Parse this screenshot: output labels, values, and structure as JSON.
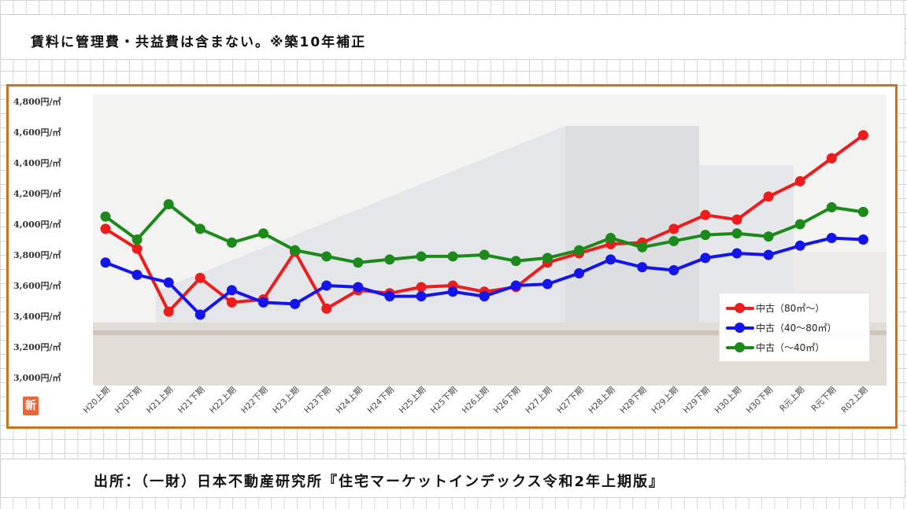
{
  "note": "賃料に管理費・共益費は含まない。※築10年補正",
  "source": "出所：（一財）日本不動産研究所『住宅マーケットインデックス令和2年上期版』",
  "badge": "新",
  "chart_data": {
    "type": "line",
    "categories": [
      "H20上期",
      "H20下期",
      "H21上期",
      "H21下期",
      "H22上期",
      "H22下期",
      "H23上期",
      "H23下期",
      "H24上期",
      "H24下期",
      "H25上期",
      "H25下期",
      "H26上期",
      "H26下期",
      "H27上期",
      "H27下期",
      "H28上期",
      "H28下期",
      "H29上期",
      "H29下期",
      "H30上期",
      "H30下期",
      "R元上期",
      "R元下期",
      "R02上期"
    ],
    "y_ticks": [
      "3,000円/㎡",
      "3,200円/㎡",
      "3,400円/㎡",
      "3,600円/㎡",
      "3,800円/㎡",
      "4,000円/㎡",
      "4,200円/㎡",
      "4,400円/㎡",
      "4,600円/㎡",
      "4,800円/㎡"
    ],
    "ylim": [
      3000,
      4800
    ],
    "series": [
      {
        "name": "中古（80㎡～）",
        "color": "#ee1c1c",
        "values": [
          3970,
          3840,
          3430,
          3650,
          3490,
          3510,
          3820,
          3450,
          3570,
          3550,
          3590,
          3600,
          3560,
          3590,
          3750,
          3810,
          3870,
          3880,
          3970,
          4060,
          4030,
          4180,
          4280,
          4430,
          4580
        ]
      },
      {
        "name": "中古（40～80㎡）",
        "color": "#1414ee",
        "values": [
          3750,
          3670,
          3620,
          3410,
          3570,
          3490,
          3480,
          3600,
          3590,
          3530,
          3530,
          3560,
          3530,
          3600,
          3610,
          3680,
          3770,
          3720,
          3700,
          3780,
          3810,
          3800,
          3860,
          3910,
          3900
        ]
      },
      {
        "name": "中古（～40㎡）",
        "color": "#1b8a1b",
        "values": [
          4050,
          3900,
          4130,
          3970,
          3880,
          3940,
          3830,
          3790,
          3750,
          3770,
          3790,
          3790,
          3800,
          3760,
          3780,
          3830,
          3910,
          3850,
          3890,
          3930,
          3940,
          3920,
          4000,
          4110,
          4080
        ]
      }
    ],
    "xlabel": "",
    "ylabel": "",
    "grid": false,
    "legend": "bottom-right"
  }
}
